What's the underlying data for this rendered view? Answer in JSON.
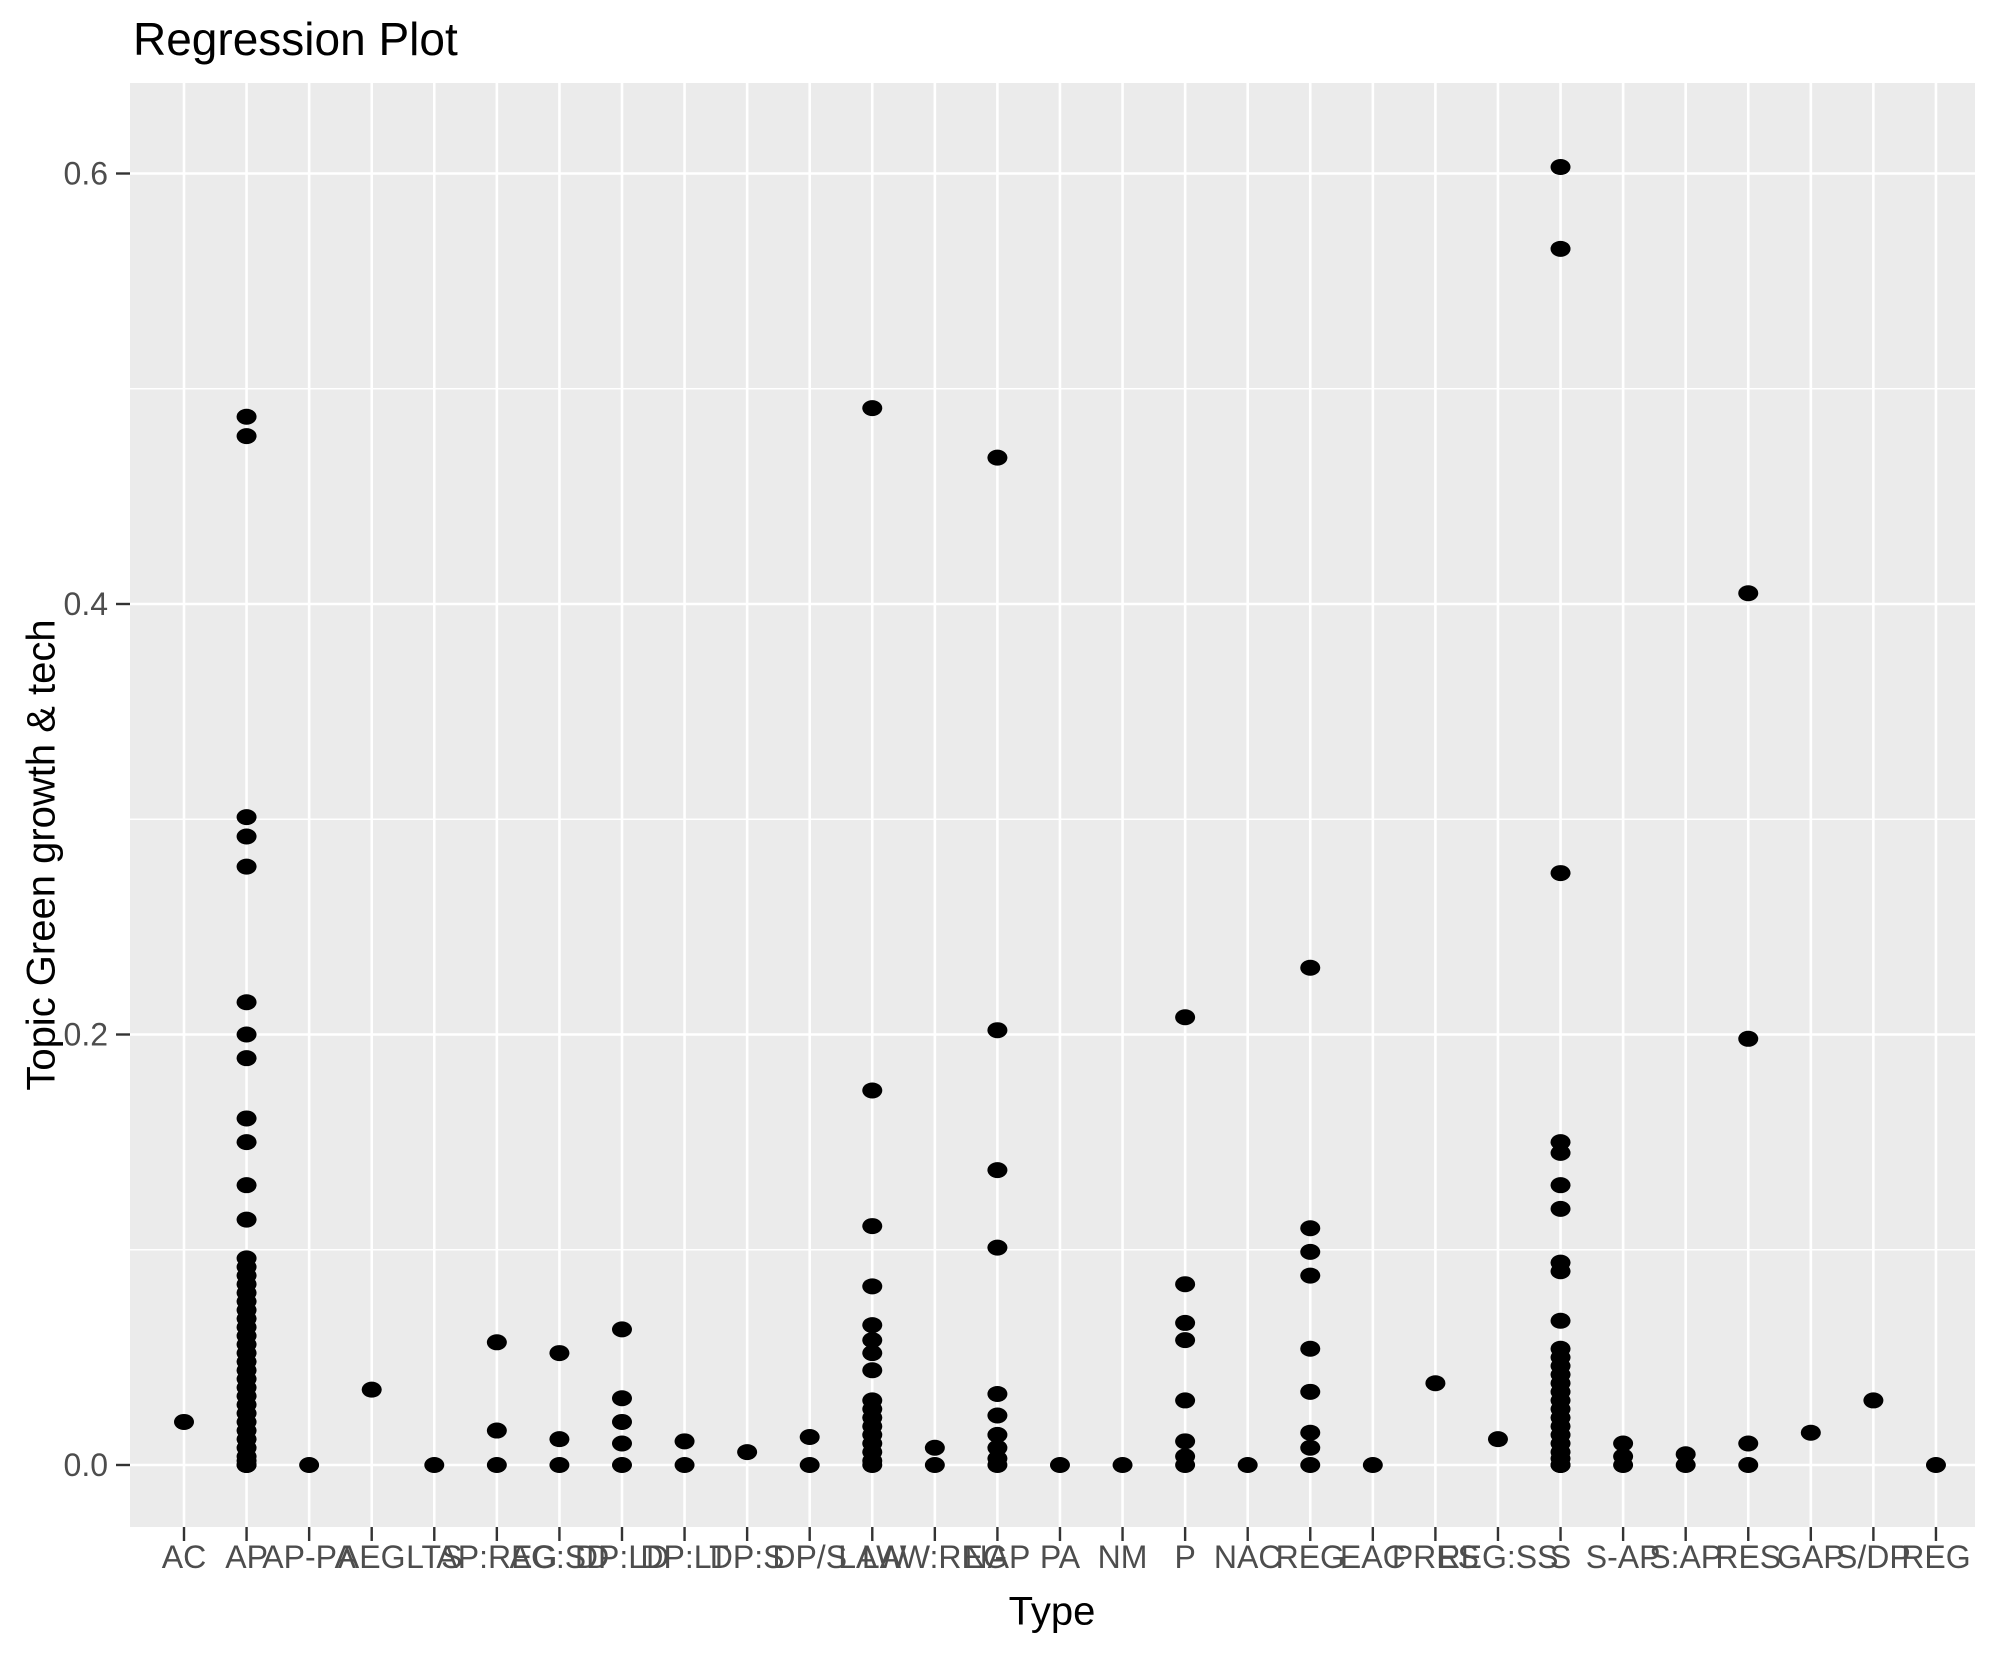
{
  "chart_data": {
    "type": "scatter",
    "title": "Regression Plot",
    "xlabel": "Type",
    "ylabel": "Topic Green growth & tech",
    "ylim": [
      -0.029,
      0.642
    ],
    "grid": true,
    "legend_position": "none",
    "y_major_ticks": [
      0.0,
      0.2,
      0.4,
      0.6
    ],
    "y_major_tick_labels": [
      "0.0",
      "0.2",
      "0.4",
      "0.6"
    ],
    "y_minor_ticks": [
      0.1,
      0.3,
      0.5
    ],
    "categories": [
      "AC",
      "AP",
      "AP-PA",
      "AEG",
      "LTS",
      "AP:REG",
      "AG:SD",
      "DP:LD",
      "DP:LT",
      "DP:S",
      "DP/S",
      "LAW",
      "LAW:REG",
      "NAP",
      "PA",
      "NM",
      "P",
      "NAC",
      "REG",
      "EAC",
      "PRES",
      "REG:SS",
      "S",
      "S-AP",
      "S:AP",
      "RES",
      "GAP",
      "S/DP",
      "REG"
    ],
    "points": [
      {
        "category": "AC",
        "values": [
          0.02
        ]
      },
      {
        "category": "AP",
        "values": [
          0.487,
          0.478,
          0.301,
          0.292,
          0.278,
          0.215,
          0.2,
          0.189,
          0.161,
          0.15,
          0.13,
          0.114,
          0.096,
          0.092,
          0.088,
          0.084,
          0.08,
          0.076,
          0.072,
          0.068,
          0.064,
          0.06,
          0.056,
          0.052,
          0.048,
          0.044,
          0.04,
          0.036,
          0.032,
          0.028,
          0.024,
          0.02,
          0.016,
          0.012,
          0.008,
          0.004,
          0.002,
          0.0,
          0.0
        ]
      },
      {
        "category": "AP-PA",
        "values": [
          0.0
        ]
      },
      {
        "category": "AEG",
        "values": [
          0.035
        ]
      },
      {
        "category": "LTS",
        "values": [
          0.0
        ]
      },
      {
        "category": "AP:REG",
        "values": [
          0.057,
          0.016,
          0.0
        ]
      },
      {
        "category": "AG:SD",
        "values": [
          0.052,
          0.012,
          0.0
        ]
      },
      {
        "category": "DP:LD",
        "values": [
          0.063,
          0.031,
          0.02,
          0.01,
          0.0
        ]
      },
      {
        "category": "DP:LT",
        "values": [
          0.011,
          0.0
        ]
      },
      {
        "category": "DP:S",
        "values": [
          0.006
        ]
      },
      {
        "category": "DP/S",
        "values": [
          0.013,
          0.0
        ]
      },
      {
        "category": "LAW",
        "values": [
          0.491,
          0.174,
          0.111,
          0.083,
          0.065,
          0.058,
          0.052,
          0.044,
          0.03,
          0.026,
          0.022,
          0.018,
          0.014,
          0.01,
          0.006,
          0.002,
          0.0
        ]
      },
      {
        "category": "LAW:REG",
        "values": [
          0.008,
          0.0
        ]
      },
      {
        "category": "NAP",
        "values": [
          0.468,
          0.202,
          0.137,
          0.101,
          0.033,
          0.023,
          0.014,
          0.008,
          0.003,
          0.0
        ]
      },
      {
        "category": "PA",
        "values": [
          0.0
        ]
      },
      {
        "category": "NM",
        "values": [
          0.0
        ]
      },
      {
        "category": "P",
        "values": [
          0.208,
          0.084,
          0.066,
          0.058,
          0.03,
          0.011,
          0.004,
          0.0
        ]
      },
      {
        "category": "NAC",
        "values": [
          0.0
        ]
      },
      {
        "category": "REG",
        "values": [
          0.231,
          0.11,
          0.099,
          0.088,
          0.054,
          0.034,
          0.015,
          0.008,
          0.0
        ]
      },
      {
        "category": "EAC",
        "values": [
          0.0
        ]
      },
      {
        "category": "PRES",
        "values": [
          0.038
        ]
      },
      {
        "category": "REG:SS",
        "values": [
          0.012
        ]
      },
      {
        "category": "S",
        "values": [
          0.603,
          0.565,
          0.275,
          0.15,
          0.145,
          0.13,
          0.119,
          0.094,
          0.09,
          0.067,
          0.054,
          0.05,
          0.046,
          0.042,
          0.038,
          0.034,
          0.03,
          0.026,
          0.022,
          0.018,
          0.014,
          0.01,
          0.006,
          0.003,
          0.0,
          0.0
        ]
      },
      {
        "category": "S-AP",
        "values": [
          0.01,
          0.004,
          0.0
        ]
      },
      {
        "category": "S:AP",
        "values": [
          0.005,
          0.0
        ]
      },
      {
        "category": "RES",
        "values": [
          0.405,
          0.198,
          0.01,
          0.0
        ]
      },
      {
        "category": "GAP",
        "values": [
          0.015
        ]
      },
      {
        "category": "S/DP",
        "values": [
          0.03
        ]
      },
      {
        "category": "REG",
        "values": [
          0.0
        ]
      }
    ]
  },
  "colors": {
    "page_background": "#FFFFFF",
    "panel_background": "#EBEBEB",
    "grid_line": "#FFFFFF",
    "point": "#000000",
    "tick_label": "#4D4D4D",
    "axis_tick": "#333333",
    "title_text": "#000000"
  }
}
